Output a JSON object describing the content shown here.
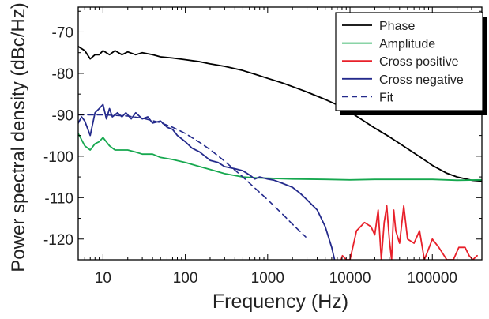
{
  "chart_data": {
    "type": "line",
    "title": "",
    "xlabel": "Frequency (Hz)",
    "ylabel": "Power spectral density (dBc/Hz)",
    "xscale": "log",
    "xlim": [
      5,
      400000
    ],
    "ylim": [
      -125,
      -64
    ],
    "grid": false,
    "legend_position": "top-right",
    "x_ticks": [
      {
        "value": 10,
        "label": "10"
      },
      {
        "value": 100,
        "label": "100"
      },
      {
        "value": 1000,
        "label": "1000"
      },
      {
        "value": 10000,
        "label": "10000"
      },
      {
        "value": 100000,
        "label": "100000"
      }
    ],
    "y_ticks": [
      {
        "value": -70,
        "label": "-70"
      },
      {
        "value": -80,
        "label": "-80"
      },
      {
        "value": -90,
        "label": "-90"
      },
      {
        "value": -100,
        "label": "-100"
      },
      {
        "value": -110,
        "label": "-110"
      },
      {
        "value": -120,
        "label": "-120"
      }
    ],
    "series": [
      {
        "name": "Phase",
        "color": "#000000",
        "dash": false,
        "x": [
          5,
          6,
          7,
          8,
          9,
          10,
          12,
          14,
          17,
          20,
          25,
          30,
          40,
          50,
          70,
          100,
          150,
          200,
          300,
          500,
          700,
          1000,
          1500,
          2000,
          3000,
          5000,
          7000,
          10000,
          15000,
          20000,
          30000,
          50000,
          70000,
          100000,
          150000,
          200000,
          300000,
          400000
        ],
        "y": [
          -73.5,
          -74.5,
          -76.5,
          -75.5,
          -75.5,
          -74.5,
          -75.5,
          -74.5,
          -75.5,
          -74.8,
          -75.5,
          -75,
          -75.5,
          -76,
          -76.3,
          -76.7,
          -77.2,
          -77.7,
          -78.3,
          -79.3,
          -80.2,
          -81.2,
          -82.3,
          -83.2,
          -84.5,
          -86.3,
          -87.6,
          -89.3,
          -91.6,
          -93.2,
          -95.3,
          -98.2,
          -100.1,
          -102.2,
          -104.1,
          -105,
          -105.8,
          -106
        ]
      },
      {
        "name": "Amplitude",
        "color": "#16a84f",
        "dash": false,
        "x": [
          5,
          6,
          7,
          8,
          9,
          10,
          12,
          14,
          16,
          20,
          25,
          30,
          40,
          50,
          70,
          100,
          150,
          200,
          300,
          500,
          700,
          1000,
          2000,
          5000,
          10000,
          20000,
          50000,
          100000,
          200000,
          400000
        ],
        "y": [
          -94.5,
          -97.5,
          -98.5,
          -97,
          -96.5,
          -95.5,
          -97.5,
          -98.5,
          -98.5,
          -98.5,
          -99,
          -99.5,
          -99.5,
          -100.3,
          -100.8,
          -101.5,
          -102.5,
          -103.2,
          -104.2,
          -105,
          -105.2,
          -105.3,
          -105.5,
          -105.6,
          -105.7,
          -105.6,
          -105.6,
          -105.6,
          -105.8,
          -105.7
        ]
      },
      {
        "name": "Cross positive",
        "color": "#e8202a",
        "dash": false,
        "x": [
          7800,
          8100,
          9000,
          10000,
          12000,
          15000,
          18000,
          20000,
          22000,
          24000,
          26000,
          28000,
          30000,
          32000,
          34000,
          36000,
          40000,
          45000,
          50000,
          60000,
          70000,
          80000,
          100000,
          120000,
          150000,
          180000,
          210000,
          250000,
          280000,
          310000,
          350000
        ],
        "y": [
          -125,
          -124,
          -125,
          -125,
          -118,
          -116,
          -117,
          -119,
          -113,
          -125,
          -116,
          -112,
          -120,
          -125,
          -113,
          -118,
          -121,
          -112,
          -120,
          -121,
          -118,
          -125,
          -120,
          -122,
          -125,
          -125,
          -122,
          -122,
          -124,
          -125,
          -124
        ]
      },
      {
        "name": "Cross negative",
        "color": "#242a8c",
        "dash": false,
        "x": [
          5,
          5.5,
          6,
          7,
          8,
          9,
          10,
          11,
          12,
          13,
          15,
          17,
          19,
          22,
          25,
          30,
          35,
          40,
          50,
          60,
          70,
          80,
          100,
          120,
          150,
          200,
          250,
          300,
          400,
          500,
          600,
          700,
          800,
          1000,
          1200,
          1500,
          2000,
          2500,
          3000,
          4000,
          5000,
          6000,
          6500
        ],
        "y": [
          -92,
          -90.5,
          -91.5,
          -95,
          -89.5,
          -88.5,
          -87.5,
          -91,
          -88.5,
          -90.5,
          -89.5,
          -90.5,
          -89.5,
          -91,
          -89.5,
          -91,
          -90.5,
          -92,
          -91.5,
          -93,
          -93.5,
          -95,
          -96.5,
          -98,
          -99,
          -101,
          -101.5,
          -102.5,
          -103,
          -103.5,
          -104.5,
          -105.5,
          -105,
          -105.5,
          -105.8,
          -106.5,
          -107.5,
          -109,
          -110.5,
          -113,
          -117,
          -122,
          -125
        ]
      },
      {
        "name": "Fit",
        "color": "#242a8c",
        "dash": true,
        "x": [
          5,
          10,
          20,
          30,
          50,
          70,
          100,
          150,
          200,
          300,
          500,
          700,
          1000,
          1500,
          2000,
          2900
        ],
        "y": [
          -90,
          -90,
          -90.3,
          -90.8,
          -91.9,
          -93,
          -94.5,
          -96.7,
          -98.4,
          -101.2,
          -105,
          -107.7,
          -110.5,
          -113.9,
          -116.4,
          -119.5
        ]
      }
    ]
  }
}
